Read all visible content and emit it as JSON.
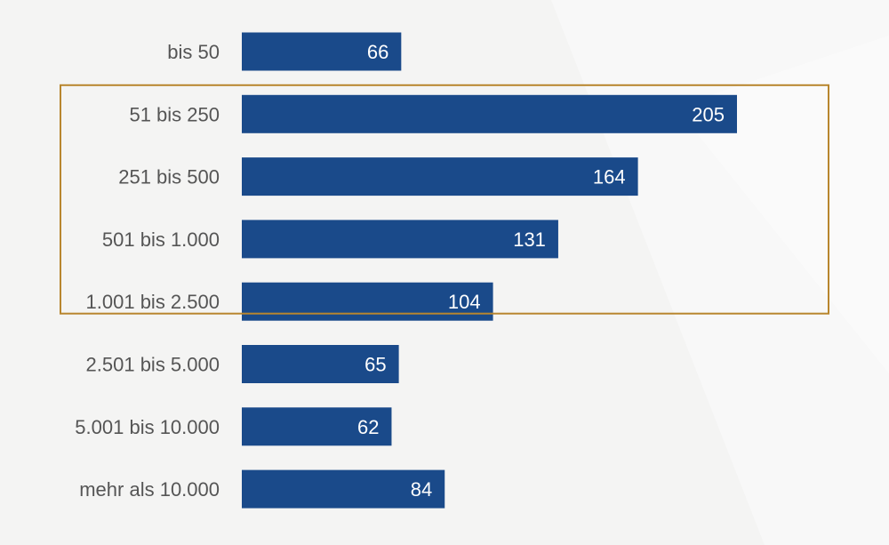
{
  "chart_data": {
    "type": "bar",
    "orientation": "horizontal",
    "categories": [
      "bis 50",
      "51 bis 250",
      "251 bis 500",
      "501 bis 1.000",
      "1.001 bis 2.500",
      "2.501 bis 5.000",
      "5.001 bis 10.000",
      "mehr als 10.000"
    ],
    "values": [
      66,
      205,
      164,
      131,
      104,
      65,
      62,
      84
    ],
    "bar_color": "#1a4a8a",
    "highlight": {
      "categories": [
        "51 bis 250",
        "251 bis 500",
        "501 bis 1.000",
        "1.001 bis 2.500"
      ],
      "color": "#b8862e"
    },
    "title": "",
    "xlabel": "",
    "ylabel": "",
    "grid": false,
    "legend": "none",
    "data_labels": "inside-end"
  },
  "colors": {
    "background": "#f4f4f3",
    "label_text": "#555555",
    "value_text": "#ffffff"
  }
}
